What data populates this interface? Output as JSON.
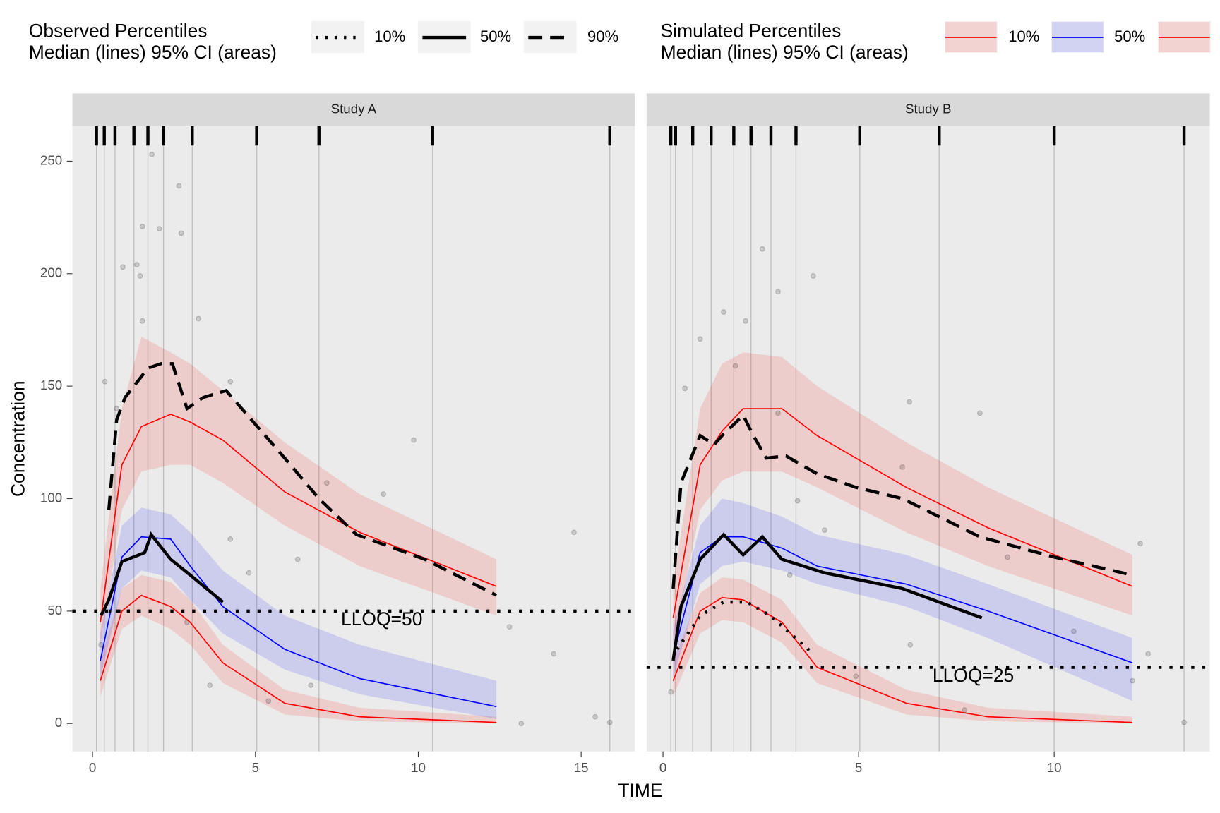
{
  "chart_data": {
    "type": "line",
    "x_label": "TIME",
    "y_label": "Concentration",
    "ylim": [
      -12.4,
      265.6
    ],
    "yticks": [
      0,
      50,
      100,
      150,
      200,
      250
    ],
    "observed_legend": {
      "title_lines": [
        "Observed Percentiles",
        "Median (lines) 95% CI (areas)"
      ],
      "labels": [
        "10%",
        "50%",
        "90%"
      ],
      "linetypes": [
        "dotted",
        "solid",
        "dashed"
      ]
    },
    "simulated_legend": {
      "title_lines": [
        "Simulated Percentiles",
        "Median (lines) 95% CI (areas)"
      ],
      "labels": [
        "10%",
        "50%",
        null
      ]
    },
    "panels": [
      {
        "title": "Study A",
        "xlim": [
          -0.62,
          16.65
        ],
        "xticks": [
          0,
          5,
          10,
          15
        ],
        "bins": [
          0.12,
          0.36,
          0.69,
          1.27,
          1.7,
          2.18,
          3.06,
          5.04,
          6.95,
          10.44,
          15.88
        ],
        "lloq": 50,
        "lloq_label": "LLOQ=50",
        "sim_x": [
          0.24,
          0.9,
          1.5,
          2.4,
          3.0,
          4.0,
          5.9,
          8.2,
          12.4
        ],
        "simulated": [
          {
            "color": "#ff0000",
            "values": [
              19,
              50,
              57,
              52,
              45,
              27,
              9,
              3,
              0.5
            ],
            "lower": [
              12,
              42,
              48,
              42,
              35,
              18,
              4,
              1,
              0
            ],
            "upper": [
              28,
              60,
              66,
              63,
              55,
              35,
              15,
              7,
              3
            ]
          },
          {
            "color": "#0000ff",
            "values": [
              28,
              74,
              83,
              82,
              70,
              52,
              33,
              20,
              7.5
            ],
            "lower": [
              20,
              60,
              68,
              65,
              55,
              40,
              24,
              13,
              2
            ],
            "upper": [
              40,
              88,
              96,
              93,
              85,
              68,
              48,
              35,
              19
            ]
          },
          {
            "color": "#ff0000",
            "values": [
              45,
              115,
              132,
              137.5,
              134,
              126,
              103,
              85,
              61
            ],
            "lower": [
              35,
              95,
              112,
              115,
              115,
              107,
              88,
              70,
              48
            ],
            "upper": [
              60,
              140,
              172,
              165,
              160,
              148,
              125,
              102,
              73
            ]
          }
        ],
        "observed": [
          {
            "x": [
              0.5,
              1.2,
              1.6
            ],
            "values": [
              50,
              50,
              50
            ]
          },
          {
            "x": [
              0.26,
              0.5,
              0.9,
              1.6,
              1.8,
              2.4,
              3.0,
              4.0
            ],
            "values": [
              48,
              55,
              72,
              76,
              84,
              73,
              66,
              54
            ]
          },
          {
            "x": [
              0.5,
              0.74,
              1.0,
              1.7,
              2.1,
              2.45,
              2.9,
              3.4,
              4.1,
              5.9,
              6.95,
              8.1,
              10.2,
              12.4
            ],
            "values": [
              95,
              135,
              145,
              158,
              160,
              160,
              140,
              145,
              148,
              118,
              100,
              84,
              73,
              57
            ]
          }
        ],
        "points": {
          "x": [
            0.26,
            0.38,
            0.74,
            0.93,
            1.36,
            1.46,
            1.53,
            1.53,
            1.82,
            2.05,
            2.65,
            2.72,
            3.25,
            4.23,
            4.23,
            4.8,
            5.4,
            6.3,
            7.19,
            8.93,
            9.86,
            12.8,
            13.16,
            14.16,
            14.78,
            15.43,
            15.88,
            6.7,
            2.9,
            3.6
          ],
          "y": [
            35,
            152,
            140,
            203,
            204,
            199,
            179,
            221,
            253,
            220,
            239,
            218,
            180,
            152,
            82,
            67,
            10,
            73,
            107,
            102,
            126,
            43,
            0,
            31,
            85,
            3,
            0.5,
            17,
            45,
            17
          ]
        }
      },
      {
        "title": "Study B",
        "xlim": [
          -0.42,
          13.98
        ],
        "xticks": [
          0,
          5,
          10
        ],
        "bins": [
          0.2,
          0.32,
          0.76,
          1.23,
          1.81,
          2.25,
          2.76,
          3.4,
          5.03,
          7.06,
          10.0,
          13.32
        ],
        "lloq": 25,
        "lloq_label": "LLOQ=25",
        "sim_x": [
          0.26,
          0.95,
          1.51,
          2.05,
          3.04,
          3.94,
          6.22,
          8.31,
          12.0
        ],
        "simulated": [
          {
            "color": "#ff0000",
            "values": [
              19,
              50,
              56,
              55,
              45,
              25,
              9,
              3,
              0.5
            ],
            "lower": [
              12,
              40,
              46,
              45,
              36,
              18,
              4,
              1,
              0
            ],
            "upper": [
              28,
              58,
              65,
              64,
              55,
              35,
              15,
              7,
              3
            ]
          },
          {
            "color": "#0000ff",
            "values": [
              30,
              76,
              83,
              83,
              78,
              70,
              62,
              50,
              27
            ],
            "lower": [
              20,
              62,
              70,
              72,
              68,
              62,
              52,
              38,
              10
            ],
            "upper": [
              42,
              88,
              100,
              98,
              92,
              84,
              75,
              62,
              38
            ]
          },
          {
            "color": "#ff0000",
            "values": [
              47,
              115,
              130,
              140,
              140,
              128,
              105,
              87,
              61
            ],
            "lower": [
              35,
              95,
              108,
              112,
              112,
              105,
              85,
              70,
              48
            ],
            "upper": [
              62,
              140,
              160,
              165,
              163,
              150,
              125,
              105,
              75
            ]
          }
        ],
        "observed": [
          {
            "x": [
              0.36,
              0.95,
              1.55,
              2.15,
              2.74,
              3.84
            ],
            "values": [
              33,
              48,
              54,
              54,
              48,
              31
            ]
          },
          {
            "x": [
              0.26,
              0.46,
              0.95,
              1.55,
              2.05,
              2.54,
              3.04,
              4.13,
              6.12,
              8.15
            ],
            "values": [
              28,
              52,
              73,
              84,
              75,
              83,
              73,
              67,
              60,
              47
            ]
          },
          {
            "x": [
              0.26,
              0.46,
              0.95,
              1.31,
              1.51,
              2.05,
              2.31,
              2.64,
              3.14,
              3.94,
              4.93,
              6.12,
              8.1,
              10.0,
              12.0
            ],
            "values": [
              60,
              107,
              128,
              124,
              128,
              137,
              128,
              118,
              119,
              111,
              105,
              100,
              83,
              74,
              66
            ]
          }
        ],
        "points": {
          "x": [
            0.2,
            0.56,
            0.95,
            1.55,
            1.85,
            2.11,
            2.54,
            2.94,
            3.84,
            2.94,
            3.44,
            4.13,
            6.12,
            6.3,
            8.1,
            8.81,
            10.5,
            12.0,
            12.2,
            12.4,
            13.32,
            6.32,
            4.93,
            3.24,
            7.71
          ],
          "y": [
            14,
            149,
            171,
            183,
            159,
            179,
            211,
            192,
            199,
            138,
            99,
            86,
            114,
            143,
            138,
            74,
            41,
            19,
            80,
            31,
            0.5,
            35,
            21,
            66,
            6
          ]
        }
      }
    ]
  }
}
